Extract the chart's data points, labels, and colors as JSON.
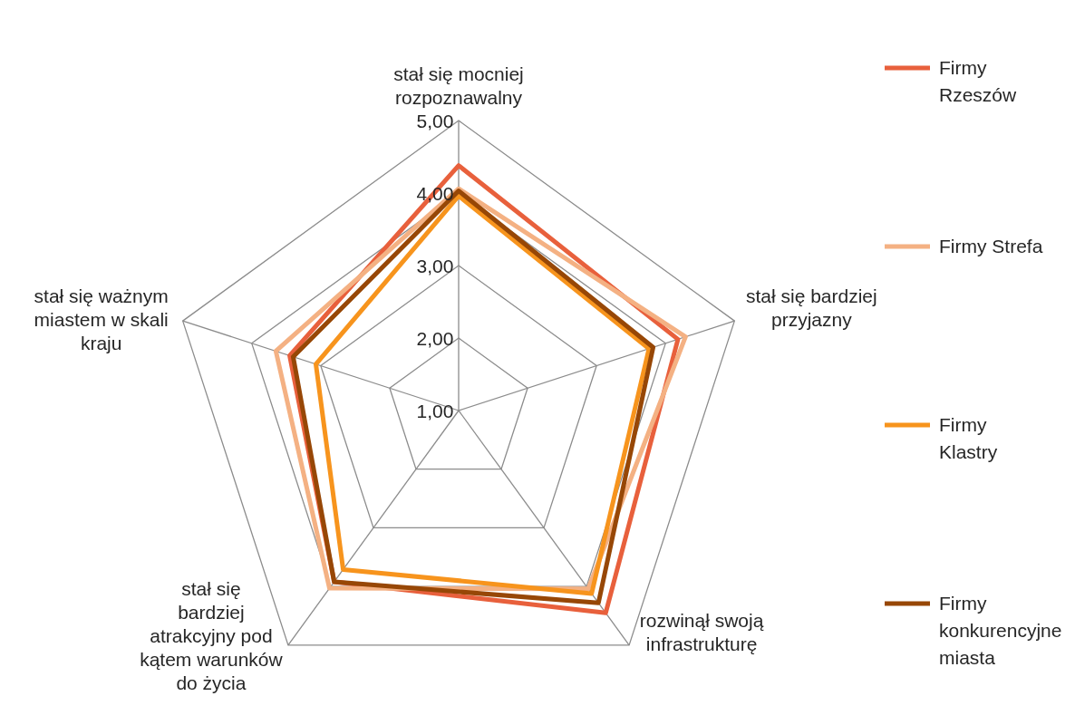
{
  "chart_data": {
    "type": "radar",
    "categories": [
      "stał się mocniej rozpoznawalny",
      "stał się bardziej przyjazny",
      "rozwinął swoją infrastrukturę",
      "stał się bardziej atrakcyjny pod kątem warunków do życia",
      "stał się ważnym miastem w skali kraju"
    ],
    "ylim": [
      1,
      5
    ],
    "yticks": [
      {
        "value": 1,
        "label": "1,00"
      },
      {
        "value": 2,
        "label": "2,00"
      },
      {
        "value": 3,
        "label": "3,00"
      },
      {
        "value": 4,
        "label": "4,00"
      },
      {
        "value": 5,
        "label": "5,00"
      }
    ],
    "grid": true,
    "legend": "right",
    "series": [
      {
        "name": "Firmy Rzeszów",
        "color": "#e8603c",
        "values": [
          4.38,
          4.18,
          4.45,
          3.92,
          3.45
        ]
      },
      {
        "name": "Firmy Strefa",
        "color": "#f4b183",
        "values": [
          4.06,
          4.29,
          4.04,
          4.03,
          3.65
        ]
      },
      {
        "name": "Firmy Klastry",
        "color": "#f7941d",
        "values": [
          3.96,
          3.76,
          4.12,
          3.71,
          3.07
        ]
      },
      {
        "name": "Firmy konkurencyjne miasta",
        "color": "#974706",
        "values": [
          4.03,
          3.82,
          4.28,
          3.92,
          3.4
        ]
      }
    ]
  }
}
